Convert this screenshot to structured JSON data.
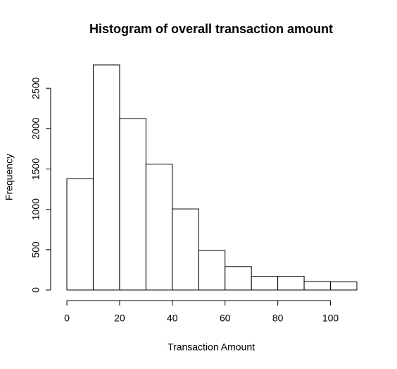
{
  "chart_data": {
    "type": "histogram",
    "title": "Histogram of overall transaction amount",
    "xlabel": "Transaction Amount",
    "ylabel": "Frequency",
    "bins": [
      0,
      10,
      20,
      30,
      40,
      50,
      60,
      70,
      80,
      90,
      100,
      110
    ],
    "values": [
      1380,
      2790,
      2125,
      1560,
      1005,
      490,
      290,
      170,
      170,
      105,
      100
    ],
    "color": "#ffffff",
    "edgecolor": "#000000",
    "xlim": [
      0,
      110
    ],
    "ylim": [
      0,
      2790
    ],
    "xticks": [
      0,
      20,
      40,
      60,
      80,
      100
    ],
    "yticks": [
      0,
      500,
      1000,
      1500,
      2000,
      2500
    ],
    "grid": false
  }
}
